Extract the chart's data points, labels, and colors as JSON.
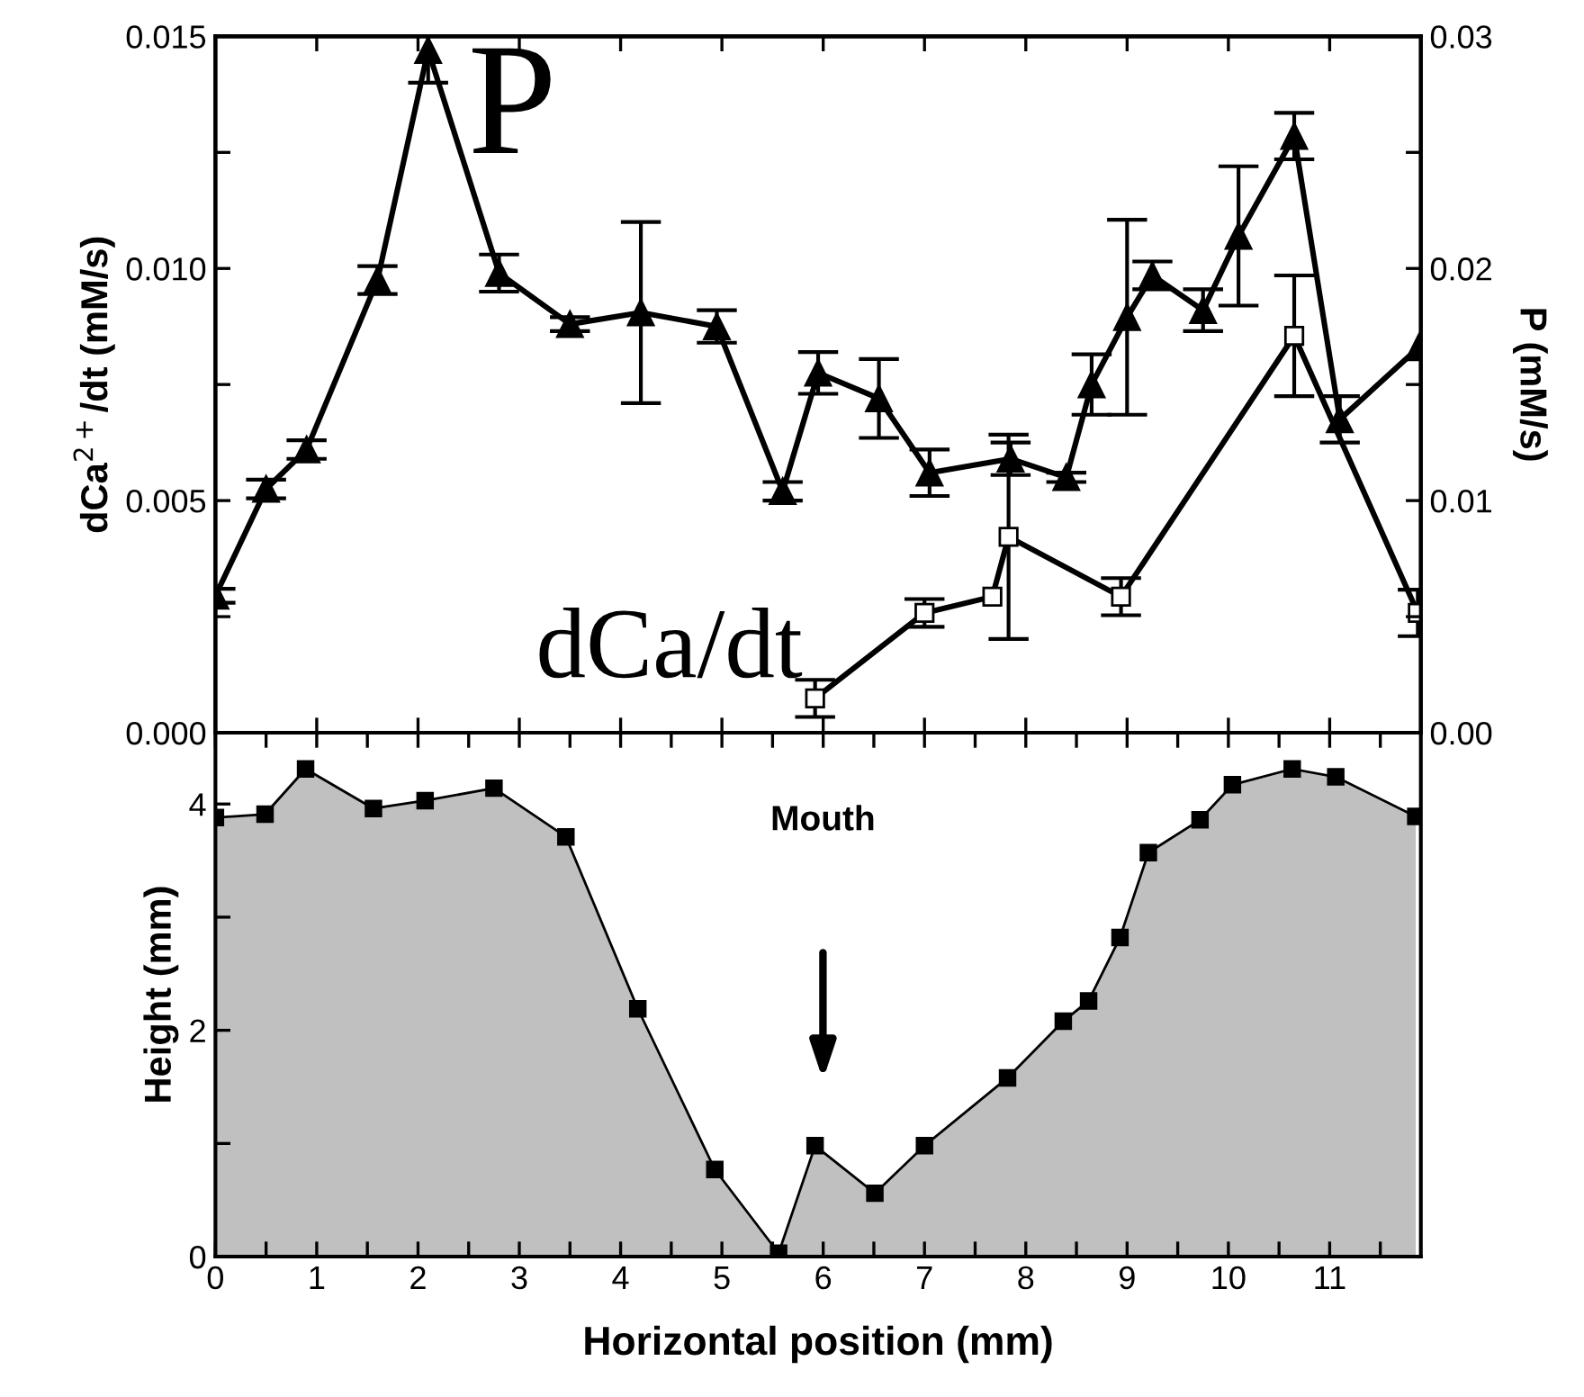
{
  "chart_data": [
    {
      "type": "line",
      "ylabel": "dCa$^{2+}$/dt (mM/s)",
      "y2label": "P (mM/s)",
      "xlim": [
        0,
        11.9
      ],
      "xticks": [
        {
          "value": 0,
          "label": null
        },
        {
          "value": 1,
          "label": null
        },
        {
          "value": 2,
          "label": null
        },
        {
          "value": 3,
          "label": null
        },
        {
          "value": 4,
          "label": null
        },
        {
          "value": 5,
          "label": null
        },
        {
          "value": 6,
          "label": null
        },
        {
          "value": 7,
          "label": null
        },
        {
          "value": 8,
          "label": null
        },
        {
          "value": 9,
          "label": null
        },
        {
          "value": 10,
          "label": null
        },
        {
          "value": 11,
          "label": null
        }
      ],
      "ylim": [
        0,
        0.015
      ],
      "yticks": [
        {
          "value": 0,
          "label": "0.000"
        },
        {
          "value": 0.0025,
          "label": null
        },
        {
          "value": 0.005,
          "label": "0.005"
        },
        {
          "value": 0.0075,
          "label": null
        },
        {
          "value": 0.01,
          "label": "0.010"
        },
        {
          "value": 0.0125,
          "label": null
        },
        {
          "value": 0.015,
          "label": "0.015"
        }
      ],
      "y2lim": [
        0,
        0.03
      ],
      "y2ticks": [
        {
          "value": 0,
          "label": "0.00"
        },
        {
          "value": 0.005,
          "label": null
        },
        {
          "value": 0.01,
          "label": "0.01"
        },
        {
          "value": 0.015,
          "label": null
        },
        {
          "value": 0.02,
          "label": "0.02"
        },
        {
          "value": 0.025,
          "label": null
        },
        {
          "value": 0.03,
          "label": "0.03"
        }
      ],
      "tick_labels": "y",
      "legend": "top left",
      "grid": false,
      "line_style": "solid",
      "series": [
        {
          "name": "P",
          "axis": "y2",
          "color": "#000000",
          "marker": "triangle",
          "x": [
            0,
            0.5,
            0.9,
            1.6,
            2.1,
            2.8,
            3.5,
            4.2,
            4.95,
            5.6,
            5.95,
            6.55,
            7.05,
            7.85,
            8.4,
            8.65,
            9.0,
            9.25,
            9.75,
            10.1,
            10.65,
            11.1,
            11.88
          ],
          "values": [
            0.0059,
            0.0105,
            0.0122,
            0.0195,
            0.0294,
            0.0198,
            0.0176,
            0.0181,
            0.0175,
            0.0104,
            0.0155,
            0.0144,
            0.0112,
            0.0118,
            0.011,
            0.015,
            0.0179,
            0.0197,
            0.0182,
            0.0214,
            0.0257,
            0.0135,
            0.0166
          ],
          "errors": [
            0.0003,
            0.0004,
            0.0004,
            0.0006,
            0.0014,
            0.0008,
            0.0003,
            0.0039,
            0.0007,
            0.0004,
            0.0009,
            0.0017,
            0.001,
            0.0007,
            0.0002,
            0.0013,
            0.0042,
            0.0006,
            0.0009,
            0.003,
            0.001,
            0.001,
            null
          ]
        },
        {
          "name": "dCa/dt",
          "color": "#000000",
          "marker": "square",
          "x": [
            5.92,
            7.0,
            7.67,
            7.83,
            8.94,
            10.65,
            11.87
          ],
          "values": [
            0.00074,
            0.00258,
            0.00293,
            0.00422,
            0.00293,
            0.00855,
            0.00258
          ],
          "errors": [
            0.0004,
            0.0003,
            null,
            0.0022,
            0.0004,
            0.0013,
            0.0005
          ]
        }
      ]
    },
    {
      "type": "area",
      "xlabel": "Horizontal position (mm)",
      "ylabel": "Height (mm)",
      "xlim": [
        0,
        11.9
      ],
      "xticks": [
        0,
        {
          "value": 0.5,
          "label": null
        },
        1,
        {
          "value": 1.5,
          "label": null
        },
        2,
        {
          "value": 2.5,
          "label": null
        },
        3,
        {
          "value": 3.5,
          "label": null
        },
        4,
        {
          "value": 4.5,
          "label": null
        },
        5,
        {
          "value": 5.5,
          "label": null
        },
        6,
        {
          "value": 6.5,
          "label": null
        },
        7,
        {
          "value": 7.5,
          "label": null
        },
        8,
        {
          "value": 8.5,
          "label": null
        },
        9,
        {
          "value": 9.5,
          "label": null
        },
        10,
        {
          "value": 10.5,
          "label": null
        },
        11,
        {
          "value": 11.5,
          "label": null
        }
      ],
      "ylim": [
        0,
        4.63
      ],
      "yticks": [
        0,
        {
          "value": 1,
          "label": null
        },
        2,
        {
          "value": 3,
          "label": null
        },
        4
      ],
      "grid": false,
      "marker": "square",
      "annotations": [
        "Mouth"
      ],
      "series": [
        {
          "color": "#c0c0c0",
          "x": [
            0,
            0.49,
            0.89,
            1.56,
            2.07,
            2.75,
            3.46,
            4.17,
            4.93,
            5.56,
            5.92,
            6.51,
            7.0,
            7.82,
            8.37,
            8.62,
            8.93,
            9.21,
            9.72,
            10.04,
            10.63,
            11.06,
            11.85
          ],
          "values": [
            3.88,
            3.91,
            4.31,
            3.96,
            4.03,
            4.14,
            3.71,
            2.19,
            0.77,
            0.03,
            0.98,
            0.56,
            0.98,
            1.58,
            2.08,
            2.26,
            2.82,
            3.57,
            3.86,
            4.17,
            4.31,
            4.24,
            3.89
          ]
        }
      ]
    }
  ]
}
